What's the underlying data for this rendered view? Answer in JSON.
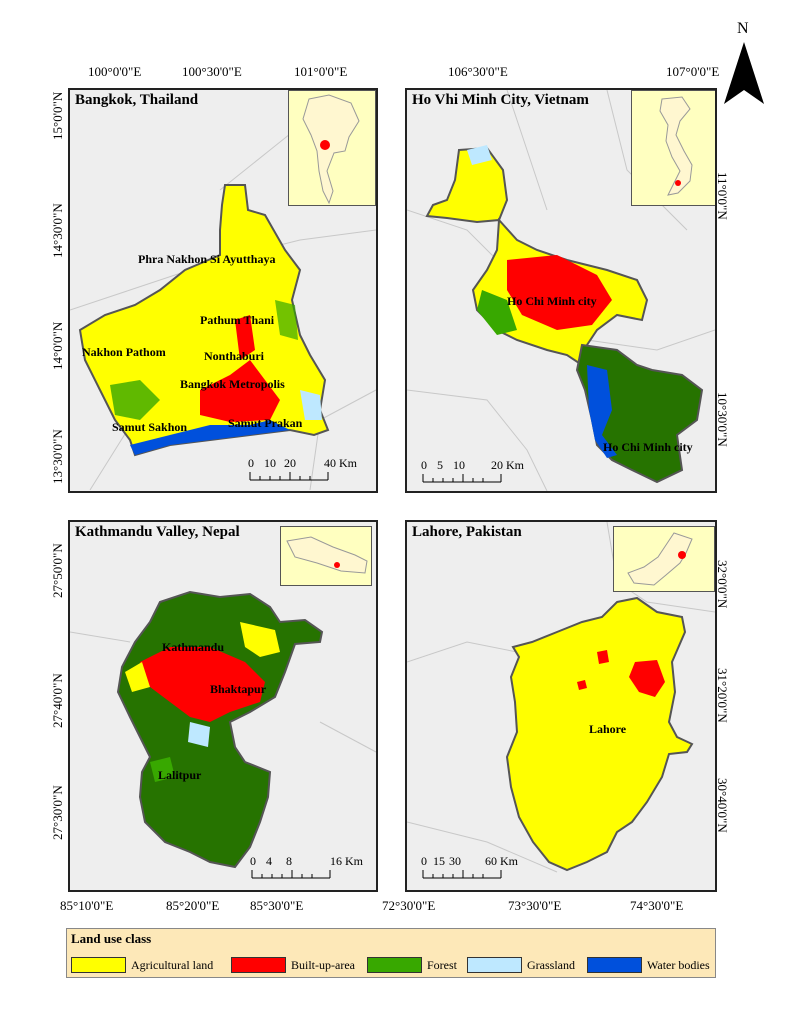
{
  "colors": {
    "agricultural": "#ffff00",
    "builtup": "#ff0000",
    "forest": "#267300",
    "forest_light": "#38a800",
    "grassland": "#bee8ff",
    "water": "#0050dc",
    "background": "#eeeeee",
    "inset": "#ffffc0",
    "legend_bg": "#fde8b8"
  },
  "north_label": "N",
  "panels": {
    "bangkok": {
      "title": "Bangkok, Thailand",
      "top_coords": [
        "100°0'0\"E",
        "100°30'0\"E",
        "101°0'0\"E"
      ],
      "left_coords": [
        "15°0'0\"N",
        "14°30'0\"N",
        "14°0'0\"N",
        "13°30'0\"N"
      ],
      "places": [
        "Phra Nakhon Si Ayutthaya",
        "Pathum Thani",
        "Nakhon Pathom",
        "Nonthaburi",
        "Bangkok Metropolis",
        "Samut Sakhon",
        "Samut Prakan"
      ],
      "scale_labels": [
        "0",
        "10",
        "20",
        "40 Km"
      ]
    },
    "hcmc": {
      "title": "Ho Vhi Minh City, Vietnam",
      "top_coords": [
        "106°30'0\"E",
        "107°0'0\"E"
      ],
      "right_coords": [
        "11°0'0\"N",
        "10°30'0\"N"
      ],
      "places": [
        "Ho Chi Minh city",
        "Ho Chi Minh city"
      ],
      "scale_labels": [
        "0",
        "5",
        "10",
        "20 Km"
      ]
    },
    "kathmandu": {
      "title": "Kathmandu Valley, Nepal",
      "left_coords": [
        "27°50'0\"N",
        "27°40'0\"N",
        "27°30'0\"N"
      ],
      "bottom_coords": [
        "85°10'0\"E",
        "85°20'0\"E",
        "85°30'0\"E"
      ],
      "places": [
        "Kathmandu",
        "Bhaktapur",
        "Lalitpur"
      ],
      "scale_labels": [
        "0",
        "4",
        "8",
        "16 Km"
      ]
    },
    "lahore": {
      "title": "Lahore, Pakistan",
      "right_coords": [
        "32°0'0\"N",
        "31°20'0\"N",
        "30°40'0\"N"
      ],
      "bottom_coords": [
        "72°30'0\"E",
        "73°30'0\"E",
        "74°30'0\"E"
      ],
      "places": [
        "Lahore"
      ],
      "scale_labels": [
        "0",
        "15",
        "30",
        "60 Km"
      ]
    }
  },
  "legend": {
    "title": "Land use class",
    "items": [
      {
        "label": "Agricultural land",
        "color": "#ffff00"
      },
      {
        "label": "Built-up-area",
        "color": "#ff0000"
      },
      {
        "label": "Forest",
        "color": "#38a800"
      },
      {
        "label": "Grassland",
        "color": "#bee8ff"
      },
      {
        "label": "Water bodies",
        "color": "#0050dc"
      }
    ]
  }
}
